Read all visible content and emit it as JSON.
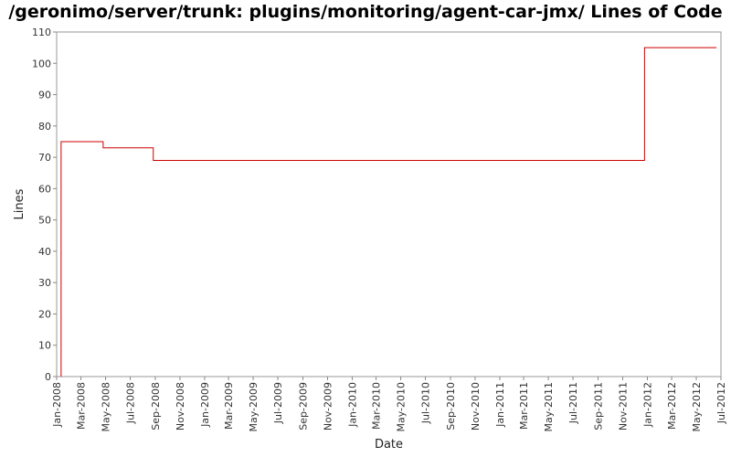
{
  "chart_data": {
    "type": "line",
    "title": "/geronimo/server/trunk: plugins/monitoring/agent-car-jmx/ Lines of Code",
    "xlabel": "Date",
    "ylabel": "Lines",
    "ylim": [
      0,
      110
    ],
    "yticks": [
      "0",
      "10",
      "20",
      "30",
      "40",
      "50",
      "60",
      "70",
      "80",
      "90",
      "100",
      "110"
    ],
    "xlim": [
      "2008-01-01",
      "2012-07-01"
    ],
    "xticks": [
      "Jan-2008",
      "Mar-2008",
      "May-2008",
      "Jul-2008",
      "Sep-2008",
      "Nov-2008",
      "Jan-2009",
      "Mar-2009",
      "May-2009",
      "Jul-2009",
      "Sep-2009",
      "Nov-2009",
      "Jan-2010",
      "Mar-2010",
      "May-2010",
      "Jul-2010",
      "Sep-2010",
      "Nov-2010",
      "Jan-2011",
      "Mar-2011",
      "May-2011",
      "Jul-2011",
      "Sep-2011",
      "Nov-2011",
      "Jan-2012",
      "Mar-2012",
      "May-2012",
      "Jul-2012"
    ],
    "line_color": "#cc0000",
    "step": true,
    "series": [
      {
        "x": [
          "2008-01-12",
          "2008-01-12",
          "2008-04-25",
          "2008-08-27",
          "2011-12-25",
          "2012-06-20"
        ],
        "y": [
          0,
          75,
          73,
          69,
          105,
          105
        ]
      }
    ]
  }
}
